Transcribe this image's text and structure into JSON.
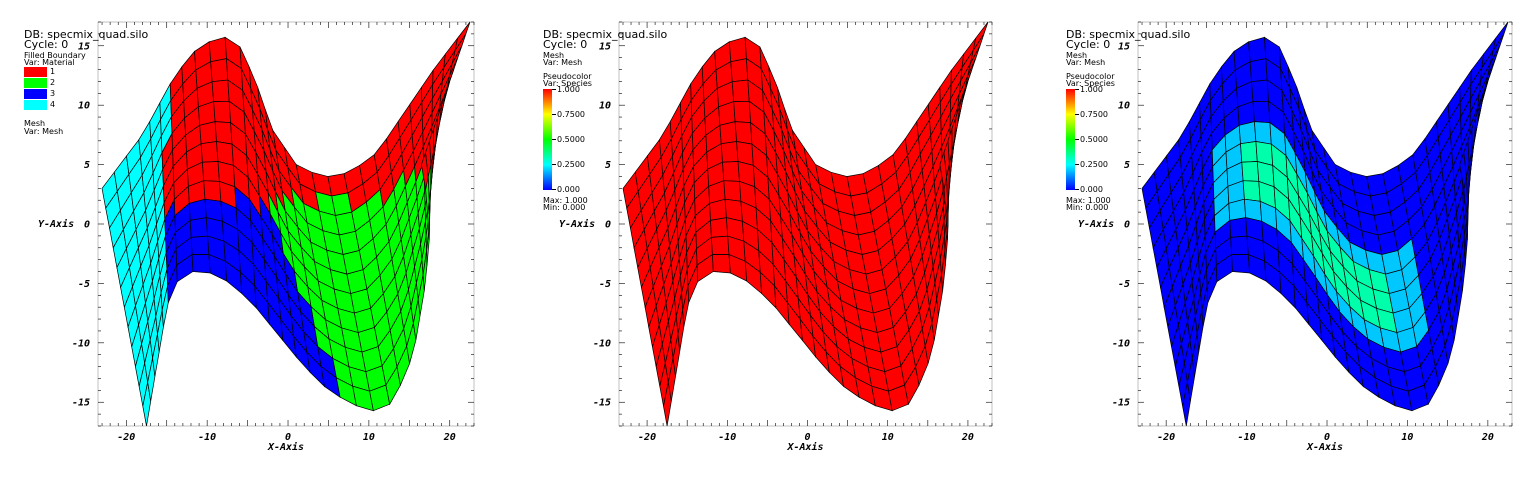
{
  "chart_data": [
    {
      "type": "mesh-plot",
      "db_label": "DB: specmix_quad.silo",
      "cycle_label": "Cycle: 0",
      "legend": {
        "kind": "materials",
        "plot_name": "Filled Boundary",
        "var_label": "Var: Material",
        "entries": [
          {
            "label": "1",
            "color": "#ff0000"
          },
          {
            "label": "2",
            "color": "#00ff00"
          },
          {
            "label": "3",
            "color": "#0000ff"
          },
          {
            "label": "4",
            "color": "#00ffff"
          }
        ]
      },
      "mesh_legend": {
        "plot_name": "Mesh",
        "var_label": "Var: Mesh"
      },
      "fill_mode": "materials",
      "xlabel": "X-Axis",
      "ylabel": "Y-Axis",
      "xlim": [
        -23.5,
        23
      ],
      "ylim": [
        -17,
        17
      ],
      "xticks": [
        -20,
        -10,
        0,
        10,
        20
      ],
      "yticks": [
        -15,
        -10,
        -5,
        0,
        5,
        10,
        15
      ]
    },
    {
      "type": "pseudocolor",
      "db_label": "DB: specmix_quad.silo",
      "cycle_label": "Cycle: 0",
      "mesh_legend": {
        "plot_name": "Mesh",
        "var_label": "Var: Mesh"
      },
      "legend": {
        "kind": "colorbar",
        "plot_name": "Pseudocolor",
        "var_label": "Var: Species",
        "ticks": [
          "1.000",
          "0.7500",
          "0.5000",
          "0.2500",
          "0.000"
        ],
        "max_label": "Max:  1.000",
        "min_label": "Min:  0.000"
      },
      "fill_mode": "uniform-red",
      "fill_color": "#ff0000",
      "xlabel": "X-Axis",
      "ylabel": "Y-Axis",
      "xlim": [
        -23.5,
        23
      ],
      "ylim": [
        -17,
        17
      ],
      "xticks": [
        -20,
        -10,
        0,
        10,
        20
      ],
      "yticks": [
        -15,
        -10,
        -5,
        0,
        5,
        10,
        15
      ]
    },
    {
      "type": "pseudocolor",
      "db_label": "DB: specmix_quad.silo",
      "cycle_label": "Cycle: 0",
      "mesh_legend": {
        "plot_name": "Mesh",
        "var_label": "Var: Mesh"
      },
      "legend": {
        "kind": "colorbar",
        "plot_name": "Pseudocolor",
        "var_label": "Var: Species",
        "ticks": [
          "1.000",
          "0.7500",
          "0.5000",
          "0.2500",
          "0.000"
        ],
        "max_label": "Max:  1.000",
        "min_label": "Min:  0.000"
      },
      "fill_mode": "species",
      "base_color": "#0000ff",
      "patch_color": "#00ffaa",
      "xlabel": "X-Axis",
      "ylabel": "Y-Axis",
      "xlim": [
        -23.5,
        23
      ],
      "ylim": [
        -17,
        17
      ],
      "xticks": [
        -20,
        -10,
        0,
        10,
        20
      ],
      "yticks": [
        -15,
        -10,
        -5,
        0,
        5,
        10,
        15
      ]
    }
  ]
}
